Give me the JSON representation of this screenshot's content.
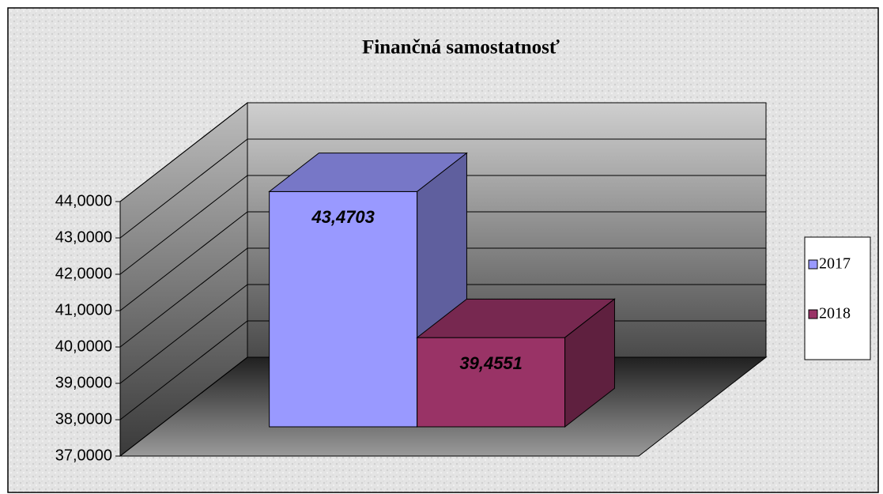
{
  "chart_data": {
    "type": "bar",
    "title": "Finančná samostatnosť",
    "categories": [
      null
    ],
    "series": [
      {
        "name": "2017",
        "color": "#9999ff",
        "values": [
          43.4703
        ],
        "value_labels": [
          "43,4703"
        ]
      },
      {
        "name": "2018",
        "color": "#993366",
        "values": [
          39.4551
        ],
        "value_labels": [
          "39,4551"
        ]
      }
    ],
    "ylim": [
      37,
      44
    ],
    "yticks": [
      {
        "value": 37,
        "label": "37,0000"
      },
      {
        "value": 38,
        "label": "38,0000"
      },
      {
        "value": 39,
        "label": "39,0000"
      },
      {
        "value": 40,
        "label": "40,0000"
      },
      {
        "value": 41,
        "label": "41,0000"
      },
      {
        "value": 42,
        "label": "42,0000"
      },
      {
        "value": 43,
        "label": "43,0000"
      },
      {
        "value": 44,
        "label": "44,0000"
      }
    ],
    "grid": true,
    "legend": "right"
  }
}
